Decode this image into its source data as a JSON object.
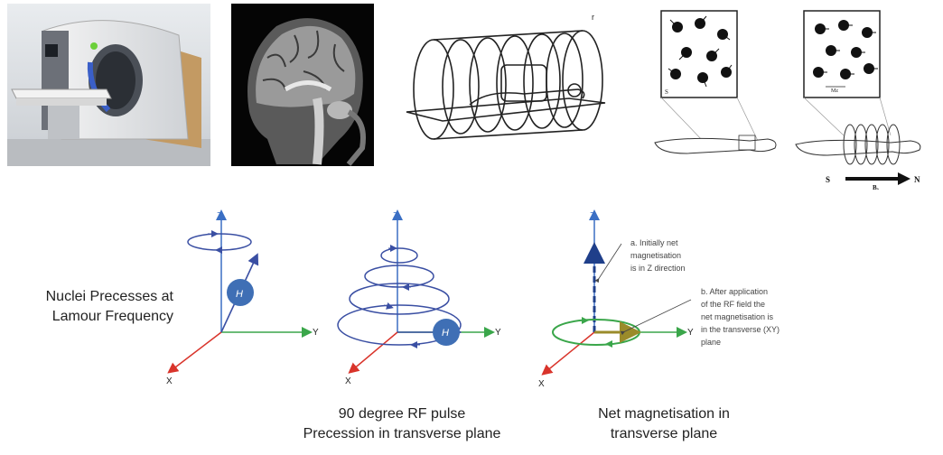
{
  "photos": {
    "scanner": {
      "icon": "mri-scanner-photo"
    },
    "brain": {
      "icon": "brain-sagittal-scan"
    },
    "coils": {
      "icon": "mri-coils-sketch"
    },
    "spins_random": {
      "icon": "random-spins-diagram"
    },
    "spins_aligned": {
      "icon": "aligned-spins-diagram",
      "s_label": "S",
      "n_label": "N",
      "b0_label": "B₀",
      "mz_label": "Mz"
    }
  },
  "diagram1": {
    "caption": "Nuclei Precesses at\nLamour Frequency",
    "axis_z": "Z",
    "axis_y": "Y",
    "axis_x": "X",
    "nucleus_label": "H"
  },
  "diagram2": {
    "caption": "90 degree RF pulse\nPrecession in transverse plane",
    "axis_z": "Z",
    "axis_y": "Y",
    "axis_x": "X",
    "nucleus_label": "H"
  },
  "diagram3": {
    "caption": "Net magnetisation in\ntransverse plane",
    "axis_z": "Z",
    "axis_y": "Y",
    "axis_x": "X",
    "note_a": [
      "a. Initially net",
      "magnetisation",
      "is in Z direction"
    ],
    "note_b": [
      "b. After application",
      "of the RF field the",
      "net magnetisation is",
      "in the transverse (XY)",
      "plane"
    ]
  },
  "colors": {
    "axis_z": "#3b6fc4",
    "axis_y": "#3aa64a",
    "axis_x": "#d9342b",
    "precession": "#3a4fa3",
    "nucleus": "#3f6fb5",
    "green_ring": "#3aa64a",
    "arrow_b": "#9a8b2a"
  }
}
